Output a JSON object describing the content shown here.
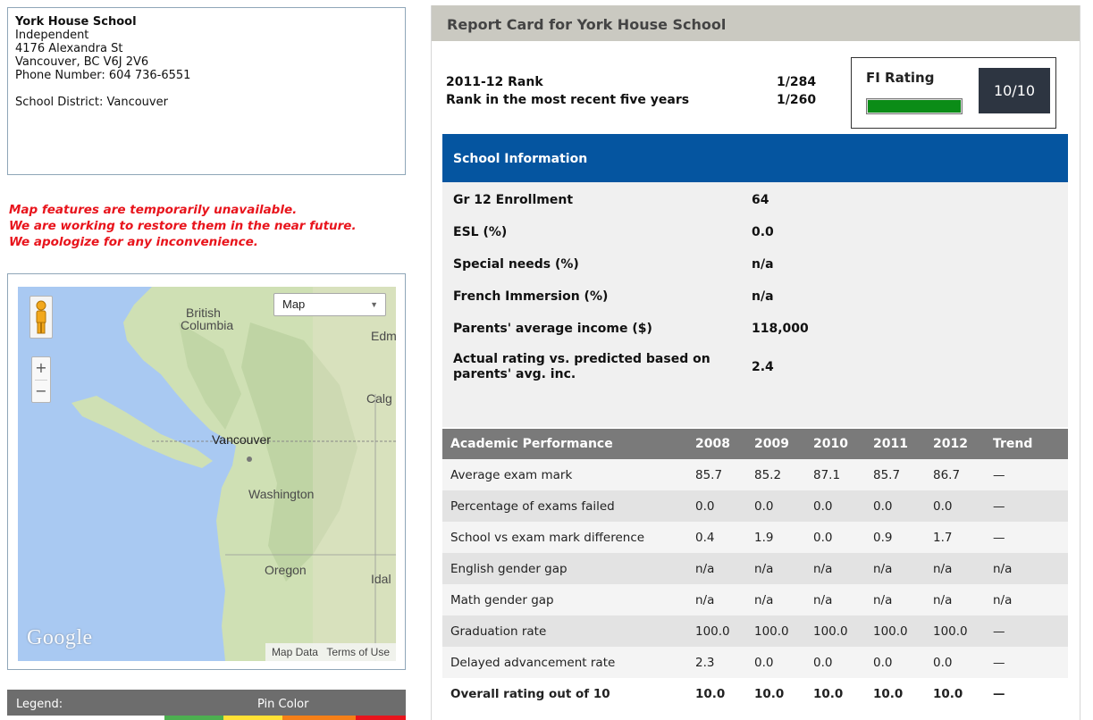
{
  "school": {
    "name": "York House School",
    "type": "Independent",
    "street": "4176 Alexandra St",
    "city": "Vancouver, BC V6J 2V6",
    "phone": "Phone Number: 604 736-6551",
    "district": "School District: Vancouver"
  },
  "notice": {
    "line1": "Map features are temporarily unavailable.",
    "line2": "We are working to restore them in the near future.",
    "line3": "We apologize for any inconvenience."
  },
  "map": {
    "type_selector": "Map",
    "labels": {
      "british": "British",
      "columbia": "Columbia",
      "edm": "Edm",
      "calg": "Calg",
      "vancouver": "Vancouver",
      "washington": "Washington",
      "oregon": "Oregon",
      "idal": "Idal"
    },
    "logo": "Google",
    "map_data": "Map Data",
    "terms": "Terms of Use",
    "zoom_in": "+",
    "zoom_out": "−",
    "colors": {
      "water": "#a9c9f2",
      "land": "#cfe0b4",
      "mountain": "#b8cf9c"
    }
  },
  "legend": {
    "label": "Legend:",
    "pin_color": "Pin Color",
    "colors": [
      "#ffffff",
      "#4caf50",
      "#ffe135",
      "#f57f17",
      "#e8141c"
    ]
  },
  "report": {
    "title": "Report Card for York House School",
    "rank_label": "2011-12 Rank",
    "rank_value": "1/284",
    "five_year_label": "Rank in the most recent five years",
    "five_year_value": "1/260",
    "fi_rating_label": "FI Rating",
    "fi_rating_value": "10/10",
    "fi_rating_fraction": 1.0,
    "fi_bar_color": "#0b8c17"
  },
  "info": {
    "header": "School Information",
    "rows": [
      {
        "label": "Gr 12 Enrollment",
        "value": "64"
      },
      {
        "label": "ESL (%)",
        "value": "0.0"
      },
      {
        "label": "Special needs (%)",
        "value": "n/a"
      },
      {
        "label": "French Immersion (%)",
        "value": "n/a"
      },
      {
        "label": "Parents' average income ($)",
        "value": "118,000"
      },
      {
        "label": "Actual rating vs. predicted based on",
        "label2": "parents' avg. inc.",
        "value": "2.4"
      }
    ]
  },
  "performance": {
    "headers": [
      "Academic Performance",
      "2008",
      "2009",
      "2010",
      "2011",
      "2012",
      "Trend"
    ],
    "rows": [
      [
        "Average exam mark",
        "85.7",
        "85.2",
        "87.1",
        "85.7",
        "86.7",
        "—"
      ],
      [
        "Percentage of exams failed",
        "0.0",
        "0.0",
        "0.0",
        "0.0",
        "0.0",
        "—"
      ],
      [
        "School vs exam mark difference",
        "0.4",
        "1.9",
        "0.0",
        "0.9",
        "1.7",
        "—"
      ],
      [
        "English gender gap",
        "n/a",
        "n/a",
        "n/a",
        "n/a",
        "n/a",
        "n/a"
      ],
      [
        "Math gender gap",
        "n/a",
        "n/a",
        "n/a",
        "n/a",
        "n/a",
        "n/a"
      ],
      [
        "Graduation rate",
        "100.0",
        "100.0",
        "100.0",
        "100.0",
        "100.0",
        "—"
      ],
      [
        "Delayed advancement rate",
        "2.3",
        "0.0",
        "0.0",
        "0.0",
        "0.0",
        "—"
      ],
      [
        "Overall rating out of 10",
        "10.0",
        "10.0",
        "10.0",
        "10.0",
        "10.0",
        "—"
      ]
    ]
  }
}
